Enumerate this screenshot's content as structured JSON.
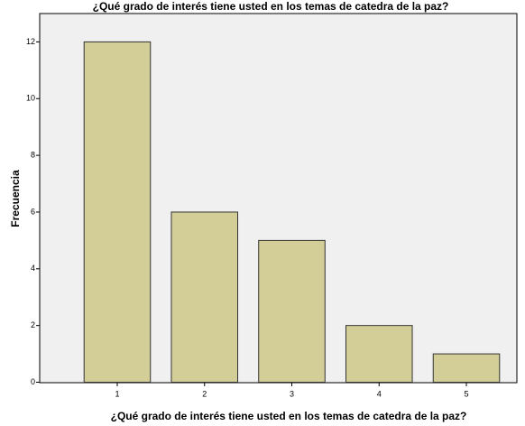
{
  "chart_data": {
    "type": "bar",
    "title": "¿Qué grado de interés tiene usted en los temas de catedra de la paz?",
    "x_label": "¿Qué grado de interés tiene usted en los temas de catedra de la paz?",
    "y_label": "Frecuencia",
    "categories": [
      "1",
      "2",
      "3",
      "4",
      "5"
    ],
    "values": [
      12,
      6,
      5,
      2,
      1
    ],
    "color": "#d3ce97",
    "ylim": [
      0,
      13
    ],
    "yticks": [
      0,
      2,
      4,
      6,
      8,
      10,
      12
    ],
    "grid": false
  }
}
